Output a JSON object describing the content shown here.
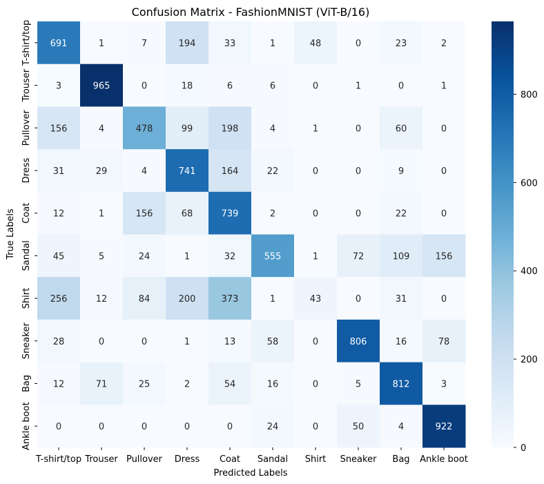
{
  "chart_data": {
    "type": "heatmap",
    "title": "Confusion Matrix - FashionMNIST (ViT-B/16)",
    "xlabel": "Predicted Labels",
    "ylabel": "True Labels",
    "x_categories": [
      "T-shirt/top",
      "Trouser",
      "Pullover",
      "Dress",
      "Coat",
      "Sandal",
      "Shirt",
      "Sneaker",
      "Bag",
      "Ankle boot"
    ],
    "y_categories": [
      "T-shirt/top",
      "Trouser",
      "Pullover",
      "Dress",
      "Coat",
      "Sandal",
      "Shirt",
      "Sneaker",
      "Bag",
      "Ankle boot"
    ],
    "values": [
      [
        691,
        1,
        7,
        194,
        33,
        1,
        48,
        0,
        23,
        2
      ],
      [
        3,
        965,
        0,
        18,
        6,
        6,
        0,
        1,
        0,
        1
      ],
      [
        156,
        4,
        478,
        99,
        198,
        4,
        1,
        0,
        60,
        0
      ],
      [
        31,
        29,
        4,
        741,
        164,
        22,
        0,
        0,
        9,
        0
      ],
      [
        12,
        1,
        156,
        68,
        739,
        2,
        0,
        0,
        22,
        0
      ],
      [
        45,
        5,
        24,
        1,
        32,
        555,
        1,
        72,
        109,
        156
      ],
      [
        256,
        12,
        84,
        200,
        373,
        1,
        43,
        0,
        31,
        0
      ],
      [
        28,
        0,
        0,
        1,
        13,
        58,
        0,
        806,
        16,
        78
      ],
      [
        12,
        71,
        25,
        2,
        54,
        16,
        0,
        5,
        812,
        3
      ],
      [
        0,
        0,
        0,
        0,
        0,
        24,
        0,
        50,
        4,
        922
      ]
    ],
    "colormap": "Blues",
    "colormap_stops": [
      "#f7fbff",
      "#deebf7",
      "#c6dbef",
      "#9ecae1",
      "#6baed6",
      "#4292c6",
      "#2171b5",
      "#08519c",
      "#08306b"
    ],
    "vmin": 0,
    "vmax": 965,
    "colorbar_ticks": [
      "0",
      "200",
      "400",
      "600",
      "800"
    ],
    "colorbar_tick_values": [
      0,
      200,
      400,
      600,
      800
    ],
    "annotation_threshold": 482.5
  }
}
